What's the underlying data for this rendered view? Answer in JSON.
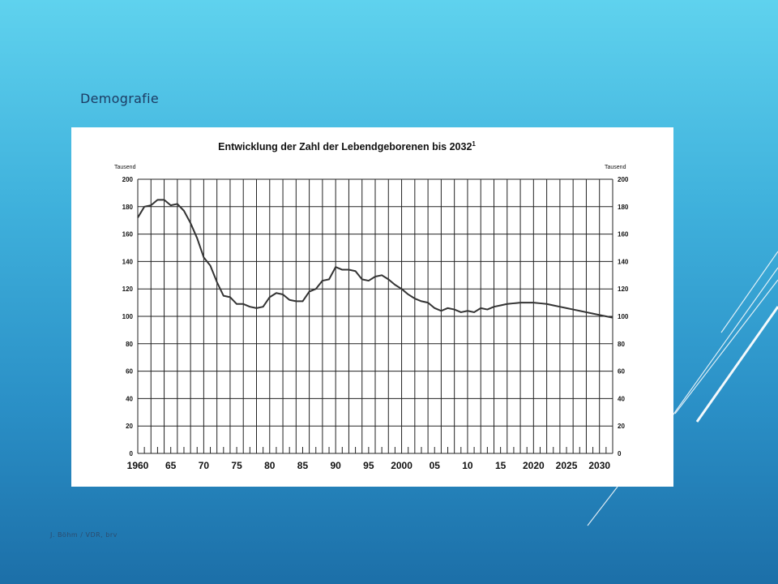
{
  "slide": {
    "title": "Demografie",
    "footer": "J. Böhm / VDR, brv"
  },
  "colors": {
    "background_top": "#5fd2ee",
    "background_bottom": "#1c6fa8",
    "title_text": "#1c3b63",
    "chart_line": "#333333",
    "grid": "#222222"
  },
  "chart_data": {
    "type": "line",
    "title": "Entwicklung der Zahl der Lebendgeborenen bis 2032",
    "title_superscript": "1",
    "ylabel_left": "Tausend",
    "ylabel_right": "Tausend",
    "xlim": [
      1960,
      2032
    ],
    "ylim": [
      0,
      200
    ],
    "y_ticks": [
      0,
      20,
      40,
      60,
      80,
      100,
      120,
      140,
      160,
      180,
      200
    ],
    "x_tick_labels": [
      {
        "year": 1960,
        "label": "1960"
      },
      {
        "year": 1965,
        "label": "65"
      },
      {
        "year": 1970,
        "label": "70"
      },
      {
        "year": 1975,
        "label": "75"
      },
      {
        "year": 1980,
        "label": "80"
      },
      {
        "year": 1985,
        "label": "85"
      },
      {
        "year": 1990,
        "label": "90"
      },
      {
        "year": 1995,
        "label": "95"
      },
      {
        "year": 2000,
        "label": "2000"
      },
      {
        "year": 2005,
        "label": "05"
      },
      {
        "year": 2010,
        "label": "10"
      },
      {
        "year": 2015,
        "label": "15"
      },
      {
        "year": 2020,
        "label": "2020"
      },
      {
        "year": 2025,
        "label": "2025"
      },
      {
        "year": 2030,
        "label": "2030"
      }
    ],
    "grid": true,
    "series": [
      {
        "x": [
          1960,
          1961,
          1962,
          1963,
          1964,
          1965,
          1966,
          1967,
          1968,
          1969,
          1970,
          1971,
          1972,
          1973,
          1974,
          1975,
          1976,
          1977,
          1978,
          1979,
          1980,
          1981,
          1982,
          1983,
          1984,
          1985,
          1986,
          1987,
          1988,
          1989,
          1990,
          1991,
          1992,
          1993,
          1994,
          1995,
          1996,
          1997,
          1998,
          1999,
          2000,
          2001,
          2002,
          2003,
          2004,
          2005,
          2006,
          2007,
          2008,
          2009,
          2010,
          2011,
          2012,
          2013,
          2014,
          2015,
          2016,
          2017,
          2018,
          2019,
          2020,
          2021,
          2022,
          2023,
          2024,
          2025,
          2026,
          2027,
          2028,
          2029,
          2030,
          2031,
          2032
        ],
        "values": [
          172,
          180,
          181,
          185,
          185,
          181,
          182,
          177,
          168,
          157,
          143,
          137,
          125,
          115,
          114,
          109,
          109,
          107,
          106,
          107,
          114,
          117,
          116,
          112,
          111,
          111,
          118,
          120,
          126,
          127,
          136,
          134,
          134,
          133,
          127,
          126,
          129,
          130,
          127,
          123,
          120,
          116,
          113,
          111,
          110,
          106,
          104,
          106,
          105,
          103,
          104,
          103,
          106,
          105,
          107,
          108,
          109,
          109.5,
          110,
          110,
          110,
          109.5,
          109,
          108,
          107,
          106,
          105,
          104,
          103,
          102,
          101,
          100,
          99
        ]
      }
    ]
  }
}
